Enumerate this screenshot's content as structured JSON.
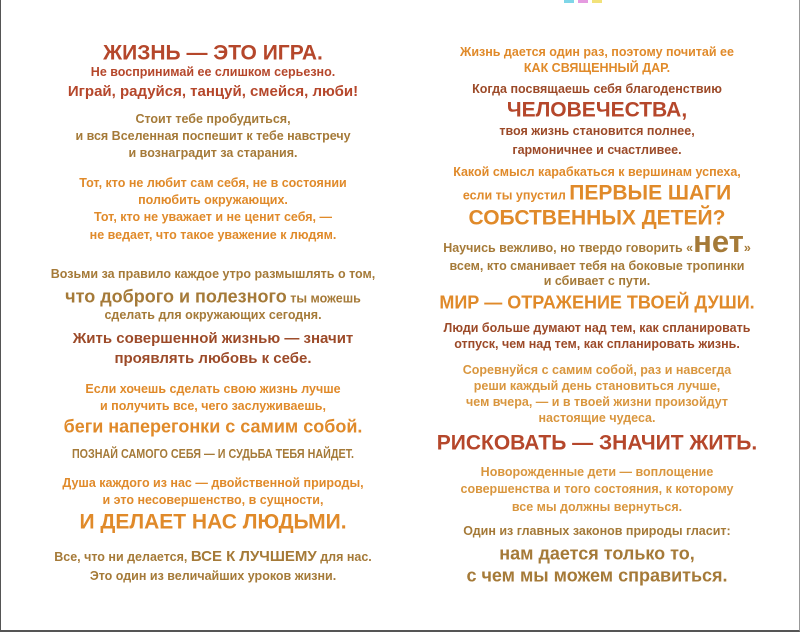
{
  "colors": {
    "rust": "#b5472b",
    "brown": "#9c4a28",
    "olive": "#a57a38",
    "orange": "#e08a2a",
    "gold": "#d9963e"
  },
  "registration_marks": [
    "#7fd6e8",
    "#e59be0",
    "#f2e27a"
  ],
  "left": {
    "lines": [
      {
        "segments": [
          {
            "text": "ЖИЗНЬ — ЭТО ИГРА.",
            "tone": "rust",
            "size": "xl"
          }
        ]
      },
      {
        "segments": [
          {
            "text": "Не воспринимай ее слишком серьезно.",
            "tone": "rust",
            "size": "s"
          }
        ]
      },
      {
        "segments": [
          {
            "text": "Играй, радуйся, танцуй, смейся, люби!",
            "tone": "rust",
            "size": "m"
          }
        ]
      },
      {
        "segments": [
          {
            "text": "Стоит тебе пробудиться,",
            "tone": "olive",
            "size": "s"
          }
        ]
      },
      {
        "segments": [
          {
            "text": "и вся Вселенная поспешит к тебе навстречу",
            "tone": "olive",
            "size": "s"
          }
        ]
      },
      {
        "segments": [
          {
            "text": "и вознаградит за старания.",
            "tone": "olive",
            "size": "s"
          }
        ]
      },
      {
        "segments": [
          {
            "text": "Тот, кто не любит сам себя, не в состоянии",
            "tone": "orange",
            "size": "s"
          }
        ]
      },
      {
        "segments": [
          {
            "text": "полюбить окружающих.",
            "tone": "orange",
            "size": "s"
          }
        ]
      },
      {
        "segments": [
          {
            "text": "Тот, кто не уважает и не ценит себя, —",
            "tone": "orange",
            "size": "s"
          }
        ]
      },
      {
        "segments": [
          {
            "text": "не ведает, что такое уважение к людям.",
            "tone": "orange",
            "size": "s"
          }
        ]
      },
      {
        "segments": [
          {
            "text": "Возьми за правило каждое утро размышлять о том,",
            "tone": "olive",
            "size": "s"
          }
        ]
      },
      {
        "segments": [
          {
            "text": "что доброго и полезного",
            "tone": "olive",
            "size": "l"
          },
          {
            "text": " ты можешь",
            "tone": "olive",
            "size": "s"
          }
        ]
      },
      {
        "segments": [
          {
            "text": "сделать для окружающих сегодня.",
            "tone": "olive",
            "size": "s"
          }
        ]
      },
      {
        "segments": [
          {
            "text": "Жить совершенной жизнью — значит",
            "tone": "brown",
            "size": "m"
          }
        ]
      },
      {
        "segments": [
          {
            "text": "проявлять любовь к себе.",
            "tone": "brown",
            "size": "m"
          }
        ]
      },
      {
        "segments": [
          {
            "text": "Если хочешь сделать свою жизнь лучше",
            "tone": "orange",
            "size": "s"
          }
        ]
      },
      {
        "segments": [
          {
            "text": "и получить все, чего заслуживаешь,",
            "tone": "orange",
            "size": "s"
          }
        ]
      },
      {
        "segments": [
          {
            "text": "беги наперегонки с самим собой.",
            "tone": "orange",
            "size": "l"
          }
        ]
      },
      {
        "segments": [
          {
            "text": "ПОЗНАЙ САМОГО СЕБЯ — И СУДЬБА ТЕБЯ НАЙДЕТ.",
            "tone": "olive",
            "size": "s",
            "condensed": true
          }
        ]
      },
      {
        "segments": [
          {
            "text": "Душа каждого из нас — двойственной природы,",
            "tone": "orange",
            "size": "s"
          }
        ]
      },
      {
        "segments": [
          {
            "text": "и это несовершенство, в сущности,",
            "tone": "orange",
            "size": "s"
          }
        ]
      },
      {
        "segments": [
          {
            "text": "И ДЕЛАЕТ НАС ЛЮДЬМИ.",
            "tone": "orange",
            "size": "xl"
          }
        ]
      },
      {
        "segments": [
          {
            "text": "Все, что ни делается, ",
            "tone": "olive",
            "size": "s"
          },
          {
            "text": "ВСЕ К ЛУЧШЕМУ",
            "tone": "olive",
            "size": "m"
          },
          {
            "text": " для нас.",
            "tone": "olive",
            "size": "s"
          }
        ]
      },
      {
        "segments": [
          {
            "text": "Это один из величайших уроков жизни.",
            "tone": "olive",
            "size": "s"
          }
        ]
      }
    ]
  },
  "right": {
    "lines": [
      {
        "segments": [
          {
            "text": "Жизнь дается один раз, поэтому почитай ее",
            "tone": "orange",
            "size": "s"
          }
        ]
      },
      {
        "segments": [
          {
            "text": "КАК СВЯЩЕННЫЙ ДАР.",
            "tone": "orange",
            "size": "s"
          }
        ]
      },
      {
        "segments": [
          {
            "text": "Когда посвящаешь себя благоденствию",
            "tone": "brown",
            "size": "s"
          }
        ]
      },
      {
        "segments": [
          {
            "text": "ЧЕЛОВЕЧЕСТВА,",
            "tone": "rust",
            "size": "xl"
          }
        ]
      },
      {
        "segments": [
          {
            "text": "твоя жизнь становится полнее,",
            "tone": "brown",
            "size": "s"
          }
        ]
      },
      {
        "segments": [
          {
            "text": "гармоничнее и счастливее.",
            "tone": "brown",
            "size": "s"
          }
        ]
      },
      {
        "segments": [
          {
            "text": "Какой смысл карабкаться к вершинам успеха,",
            "tone": "orange",
            "size": "s"
          }
        ]
      },
      {
        "segments": [
          {
            "text": "если ты упустил ",
            "tone": "orange",
            "size": "s"
          },
          {
            "text": "ПЕРВЫЕ ШАГИ",
            "tone": "orange",
            "size": "xl"
          }
        ]
      },
      {
        "segments": [
          {
            "text": "СОБСТВЕННЫХ ДЕТЕЙ?",
            "tone": "orange",
            "size": "xl"
          }
        ]
      },
      {
        "segments": [
          {
            "text": "Научись вежливо, но твердо говорить «",
            "tone": "olive",
            "size": "s"
          },
          {
            "text": "нет",
            "tone": "olive",
            "size": "xxl"
          },
          {
            "text": "»",
            "tone": "olive",
            "size": "s"
          }
        ]
      },
      {
        "segments": [
          {
            "text": "всем, кто сманивает тебя на боковые тропинки",
            "tone": "olive",
            "size": "s"
          }
        ]
      },
      {
        "segments": [
          {
            "text": "и сбивает с пути.",
            "tone": "olive",
            "size": "s"
          }
        ]
      },
      {
        "segments": [
          {
            "text": "МИР — ОТРАЖЕНИЕ ТВОЕЙ ДУШИ.",
            "tone": "orange",
            "size": "l"
          }
        ]
      },
      {
        "segments": [
          {
            "text": "Люди больше думают над тем, как спланировать",
            "tone": "brown",
            "size": "s"
          }
        ]
      },
      {
        "segments": [
          {
            "text": "отпуск, чем над тем, как спланировать жизнь.",
            "tone": "brown",
            "size": "s"
          }
        ]
      },
      {
        "segments": [
          {
            "text": "Соревнуйся с самим собой, раз и навсегда",
            "tone": "gold",
            "size": "s"
          }
        ]
      },
      {
        "segments": [
          {
            "text": "реши каждый день становиться лучше,",
            "tone": "gold",
            "size": "s"
          }
        ]
      },
      {
        "segments": [
          {
            "text": "чем вчера, — и в твоей жизни произойдут",
            "tone": "gold",
            "size": "s"
          }
        ]
      },
      {
        "segments": [
          {
            "text": "настоящие чудеса.",
            "tone": "gold",
            "size": "s"
          }
        ]
      },
      {
        "segments": [
          {
            "text": "РИСКОВАТЬ — ЗНАЧИТ ЖИТЬ.",
            "tone": "rust",
            "size": "xl"
          }
        ]
      },
      {
        "segments": [
          {
            "text": "Новорожденные дети — воплощение",
            "tone": "gold",
            "size": "s"
          }
        ]
      },
      {
        "segments": [
          {
            "text": "совершенства и того состояния, к которому",
            "tone": "gold",
            "size": "s"
          }
        ]
      },
      {
        "segments": [
          {
            "text": "все мы должны вернуться.",
            "tone": "gold",
            "size": "s"
          }
        ]
      },
      {
        "segments": [
          {
            "text": "Один из главных законов природы гласит:",
            "tone": "olive",
            "size": "s"
          }
        ]
      },
      {
        "segments": [
          {
            "text": "нам дается только то,",
            "tone": "olive",
            "size": "l"
          }
        ]
      },
      {
        "segments": [
          {
            "text": "с чем мы можем справиться.",
            "tone": "olive",
            "size": "l"
          }
        ]
      }
    ]
  }
}
